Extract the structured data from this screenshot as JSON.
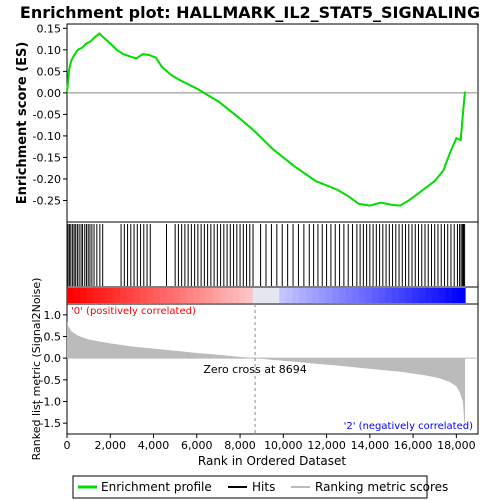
{
  "chart_data": {
    "type": "line",
    "title": "Enrichment plot: HALLMARK_IL2_STAT5_SIGNALING",
    "xlabel": "Rank in Ordered Dataset",
    "xlim": [
      0,
      19000
    ],
    "x_ticks": [
      0,
      2000,
      4000,
      6000,
      8000,
      10000,
      12000,
      14000,
      16000,
      18000
    ],
    "x_tick_labels": [
      "0",
      "2,000",
      "4,000",
      "6,000",
      "8,000",
      "10,000",
      "12,000",
      "14,000",
      "16,000",
      "18,000"
    ],
    "es_panel": {
      "ylabel": "Enrichment score (ES)",
      "ylim": [
        -0.3,
        0.16
      ],
      "y_ticks": [
        0.15,
        0.1,
        0.05,
        0.0,
        -0.05,
        -0.1,
        -0.15,
        -0.2,
        -0.25
      ],
      "y_tick_labels": [
        "0.15",
        "0.10",
        "0.05",
        "0.00",
        "-0.05",
        "-0.10",
        "-0.15",
        "-0.20",
        "-0.25"
      ],
      "series": [
        {
          "name": "Enrichment profile",
          "color": "#00dd00",
          "x": [
            0,
            100,
            200,
            300,
            500,
            700,
            900,
            1100,
            1300,
            1500,
            1700,
            2000,
            2300,
            2600,
            2900,
            3200,
            3500,
            3800,
            4100,
            4400,
            4800,
            5200,
            5600,
            6000,
            6500,
            7000,
            7500,
            8000,
            8694,
            9500,
            10500,
            11500,
            12000,
            12500,
            13000,
            13500,
            14000,
            14500,
            15000,
            15400,
            15800,
            16200,
            16600,
            17000,
            17400,
            17700,
            18000,
            18200,
            18300,
            18400
          ],
          "y": [
            0.0,
            0.055,
            0.075,
            0.085,
            0.1,
            0.105,
            0.115,
            0.12,
            0.13,
            0.138,
            0.128,
            0.115,
            0.1,
            0.09,
            0.085,
            0.08,
            0.09,
            0.088,
            0.082,
            0.06,
            0.042,
            0.03,
            0.02,
            0.01,
            -0.005,
            -0.02,
            -0.04,
            -0.06,
            -0.09,
            -0.13,
            -0.17,
            -0.205,
            -0.215,
            -0.225,
            -0.24,
            -0.258,
            -0.262,
            -0.255,
            -0.26,
            -0.262,
            -0.25,
            -0.235,
            -0.22,
            -0.205,
            -0.18,
            -0.14,
            -0.105,
            -0.11,
            -0.05,
            0.003
          ]
        }
      ]
    },
    "hits_panel": {
      "legend_label": "Hits",
      "hit_ranks": [
        50,
        120,
        180,
        260,
        330,
        400,
        480,
        560,
        650,
        720,
        820,
        900,
        980,
        1060,
        1150,
        1250,
        1380,
        1520,
        1650,
        2500,
        2650,
        2800,
        2950,
        3100,
        3250,
        3400,
        3550,
        3700,
        3850,
        4600,
        5000,
        5150,
        5300,
        5450,
        5600,
        5750,
        5900,
        6050,
        6200,
        6350,
        6500,
        6650,
        6800,
        6950,
        7100,
        7250,
        7400,
        7550,
        7700,
        7850,
        8000,
        8150,
        8300,
        8450,
        8600,
        8950,
        9200,
        9450,
        9700,
        9950,
        10200,
        10450,
        10700,
        10950,
        11200,
        11400,
        11600,
        11800,
        12000,
        12200,
        12400,
        12600,
        12800,
        13000,
        13200,
        13400,
        13550,
        13700,
        13850,
        14000,
        14150,
        14300,
        14450,
        14600,
        14750,
        14900,
        15050,
        15200,
        15350,
        15500,
        15650,
        15800,
        15950,
        16100,
        16250,
        16400,
        16550,
        16700,
        16850,
        17000,
        17150,
        17300,
        17450,
        17600,
        17750,
        17900,
        18050,
        18150,
        18220,
        18280,
        18330,
        18380
      ]
    },
    "ranked_metric_panel": {
      "ylabel": "Ranked list metric (Signal2Noise)",
      "legend_label": "Ranking metric scores",
      "ylim": [
        -1.75,
        1.25
      ],
      "y_ticks": [
        1.0,
        0.5,
        0.0,
        -0.5,
        -1.0,
        -1.5
      ],
      "y_tick_labels": [
        "1.0",
        "0.5",
        "0.0",
        "-0.5",
        "-1.0",
        "-1.5"
      ],
      "x": [
        0,
        50,
        200,
        500,
        1000,
        2000,
        3000,
        4000,
        5000,
        6000,
        7000,
        8000,
        8694,
        9500,
        10500,
        11500,
        12500,
        13500,
        14500,
        15500,
        16500,
        17200,
        17700,
        18000,
        18150,
        18300,
        18400
      ],
      "y": [
        0.85,
        0.75,
        0.62,
        0.52,
        0.43,
        0.34,
        0.27,
        0.22,
        0.17,
        0.12,
        0.08,
        0.03,
        0.0,
        -0.04,
        -0.08,
        -0.13,
        -0.17,
        -0.22,
        -0.27,
        -0.32,
        -0.39,
        -0.46,
        -0.55,
        -0.65,
        -0.78,
        -1.0,
        -1.7
      ],
      "zero_cross_label": "Zero cross at 8694",
      "zero_cross": 8694,
      "pos_label": "'0' (positively correlated)",
      "neg_label": "'2' (negatively correlated)",
      "pos_color": "#ff0000",
      "neg_color": "#0000ff"
    }
  }
}
